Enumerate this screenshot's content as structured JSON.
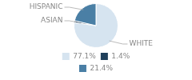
{
  "chart_data": {
    "type": "pie",
    "categories": [
      "WHITE",
      "ASIAN",
      "HISPANIC"
    ],
    "values": [
      77.1,
      1.4,
      21.4
    ],
    "value_labels": [
      "77.1%",
      "1.4%",
      "21.4%"
    ],
    "colors": [
      "#d6e4f0",
      "#1f3f5a",
      "#4a7fa5"
    ],
    "legend": "bottom"
  }
}
